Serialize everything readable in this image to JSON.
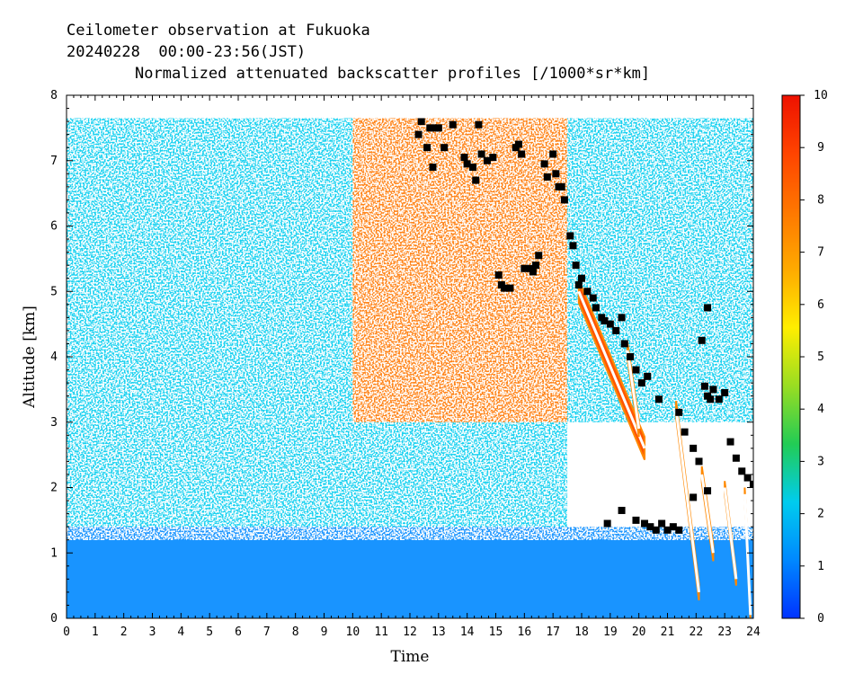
{
  "chart_data": {
    "type": "heatmap",
    "title_lines": [
      "Ceilometer observation at Fukuoka",
      "20240228  00:00-23:56(JST)",
      "Normalized attenuated backscatter profiles [/1000*sr*km]"
    ],
    "xlabel": "Time",
    "ylabel": "Altitude [km]",
    "xlim": [
      0,
      24
    ],
    "ylim": [
      0,
      8
    ],
    "data_top_km": 7.65,
    "x_ticks": [
      "0",
      "1",
      "2",
      "3",
      "4",
      "5",
      "6",
      "7",
      "8",
      "9",
      "10",
      "11",
      "12",
      "13",
      "14",
      "15",
      "16",
      "17",
      "18",
      "19",
      "20",
      "21",
      "22",
      "23",
      "24"
    ],
    "y_ticks": [
      "0",
      "1",
      "2",
      "3",
      "4",
      "5",
      "6",
      "7",
      "8"
    ],
    "colorbar": {
      "min": 0,
      "max": 10,
      "ticks": [
        "0",
        "1",
        "2",
        "3",
        "4",
        "5",
        "6",
        "7",
        "8",
        "9",
        "10"
      ],
      "colors": [
        "#0033ff",
        "#0088ff",
        "#00ccee",
        "#22cc55",
        "#99dd22",
        "#ffee00",
        "#ffaa00",
        "#ff7700",
        "#ff4400",
        "#ee1100"
      ]
    },
    "backscatter_regions": [
      {
        "name": "boundary layer",
        "time": [
          0,
          24
        ],
        "altitude_km": [
          0,
          1.4
        ],
        "value": 1.0
      },
      {
        "name": "mid layer",
        "time": [
          0,
          17.5
        ],
        "altitude_km": [
          1.4,
          3.0
        ],
        "value": 2.0
      },
      {
        "name": "upper layer west",
        "time": [
          0,
          10
        ],
        "altitude_km": [
          3.0,
          7.65
        ],
        "value": 2.8
      },
      {
        "name": "upper layer central",
        "time": [
          10,
          17.5
        ],
        "altitude_km": [
          3.0,
          7.65
        ],
        "value": 7.5
      },
      {
        "name": "upper layer east",
        "time": [
          17.5,
          24
        ],
        "altitude_km": [
          3.0,
          7.65
        ],
        "value": 2.5
      }
    ],
    "cloud_streaks": [
      {
        "t0": 17.9,
        "h0": 5.0,
        "t1": 20.2,
        "h1": 2.6,
        "thickness_km": 0.35
      },
      {
        "t0": 19.6,
        "h0": 4.1,
        "t1": 20.0,
        "h1": 2.9,
        "thickness_km": 0.25
      },
      {
        "t0": 21.3,
        "h0": 3.2,
        "t1": 22.1,
        "h1": 0.4,
        "thickness_km": 0.25
      },
      {
        "t0": 22.2,
        "h0": 2.2,
        "t1": 22.6,
        "h1": 1.0,
        "thickness_km": 0.25
      },
      {
        "t0": 23.0,
        "h0": 2.0,
        "t1": 23.4,
        "h1": 0.6,
        "thickness_km": 0.2
      },
      {
        "t0": 23.7,
        "h0": 1.9,
        "t1": 23.9,
        "h1": 0.05,
        "thickness_km": 0.2
      }
    ],
    "cloud_base_points": [
      [
        12.3,
        7.4
      ],
      [
        12.4,
        7.6
      ],
      [
        12.6,
        7.2
      ],
      [
        12.7,
        7.5
      ],
      [
        12.8,
        6.9
      ],
      [
        12.9,
        7.5
      ],
      [
        13.0,
        7.5
      ],
      [
        13.2,
        7.2
      ],
      [
        13.5,
        7.55
      ],
      [
        13.9,
        7.05
      ],
      [
        14.0,
        6.95
      ],
      [
        14.2,
        6.9
      ],
      [
        14.3,
        6.7
      ],
      [
        14.4,
        7.55
      ],
      [
        14.5,
        7.1
      ],
      [
        14.7,
        7.0
      ],
      [
        14.9,
        7.05
      ],
      [
        15.1,
        5.25
      ],
      [
        15.2,
        5.1
      ],
      [
        15.3,
        5.05
      ],
      [
        15.5,
        5.05
      ],
      [
        15.7,
        7.2
      ],
      [
        15.8,
        7.25
      ],
      [
        15.9,
        7.1
      ],
      [
        16.0,
        5.35
      ],
      [
        16.2,
        5.35
      ],
      [
        16.3,
        5.3
      ],
      [
        16.4,
        5.4
      ],
      [
        16.5,
        5.55
      ],
      [
        16.7,
        6.95
      ],
      [
        16.8,
        6.75
      ],
      [
        17.0,
        7.1
      ],
      [
        17.1,
        6.8
      ],
      [
        17.2,
        6.6
      ],
      [
        17.3,
        6.6
      ],
      [
        17.4,
        6.4
      ],
      [
        17.6,
        5.85
      ],
      [
        17.7,
        5.7
      ],
      [
        17.8,
        5.4
      ],
      [
        17.9,
        5.1
      ],
      [
        18.0,
        5.2
      ],
      [
        18.2,
        5.0
      ],
      [
        18.4,
        4.9
      ],
      [
        18.5,
        4.75
      ],
      [
        18.7,
        4.6
      ],
      [
        18.8,
        4.55
      ],
      [
        19.0,
        4.5
      ],
      [
        19.2,
        4.4
      ],
      [
        19.4,
        4.6
      ],
      [
        19.5,
        4.2
      ],
      [
        19.7,
        4.0
      ],
      [
        19.9,
        3.8
      ],
      [
        20.1,
        3.6
      ],
      [
        20.3,
        3.7
      ],
      [
        18.9,
        1.45
      ],
      [
        19.4,
        1.65
      ],
      [
        19.9,
        1.5
      ],
      [
        20.2,
        1.45
      ],
      [
        20.4,
        1.4
      ],
      [
        20.6,
        1.35
      ],
      [
        20.8,
        1.45
      ],
      [
        21.0,
        1.35
      ],
      [
        21.2,
        1.4
      ],
      [
        21.4,
        1.35
      ],
      [
        20.7,
        3.35
      ],
      [
        21.4,
        3.15
      ],
      [
        21.6,
        2.85
      ],
      [
        21.9,
        2.6
      ],
      [
        22.1,
        2.4
      ],
      [
        22.3,
        3.55
      ],
      [
        22.4,
        3.4
      ],
      [
        22.5,
        3.35
      ],
      [
        22.6,
        3.5
      ],
      [
        22.2,
        4.25
      ],
      [
        22.4,
        4.75
      ],
      [
        22.8,
        3.35
      ],
      [
        23.0,
        3.45
      ],
      [
        23.2,
        2.7
      ],
      [
        23.4,
        2.45
      ],
      [
        23.6,
        2.25
      ],
      [
        23.8,
        2.15
      ],
      [
        24.0,
        2.05
      ],
      [
        21.9,
        1.85
      ],
      [
        22.4,
        1.95
      ]
    ]
  }
}
